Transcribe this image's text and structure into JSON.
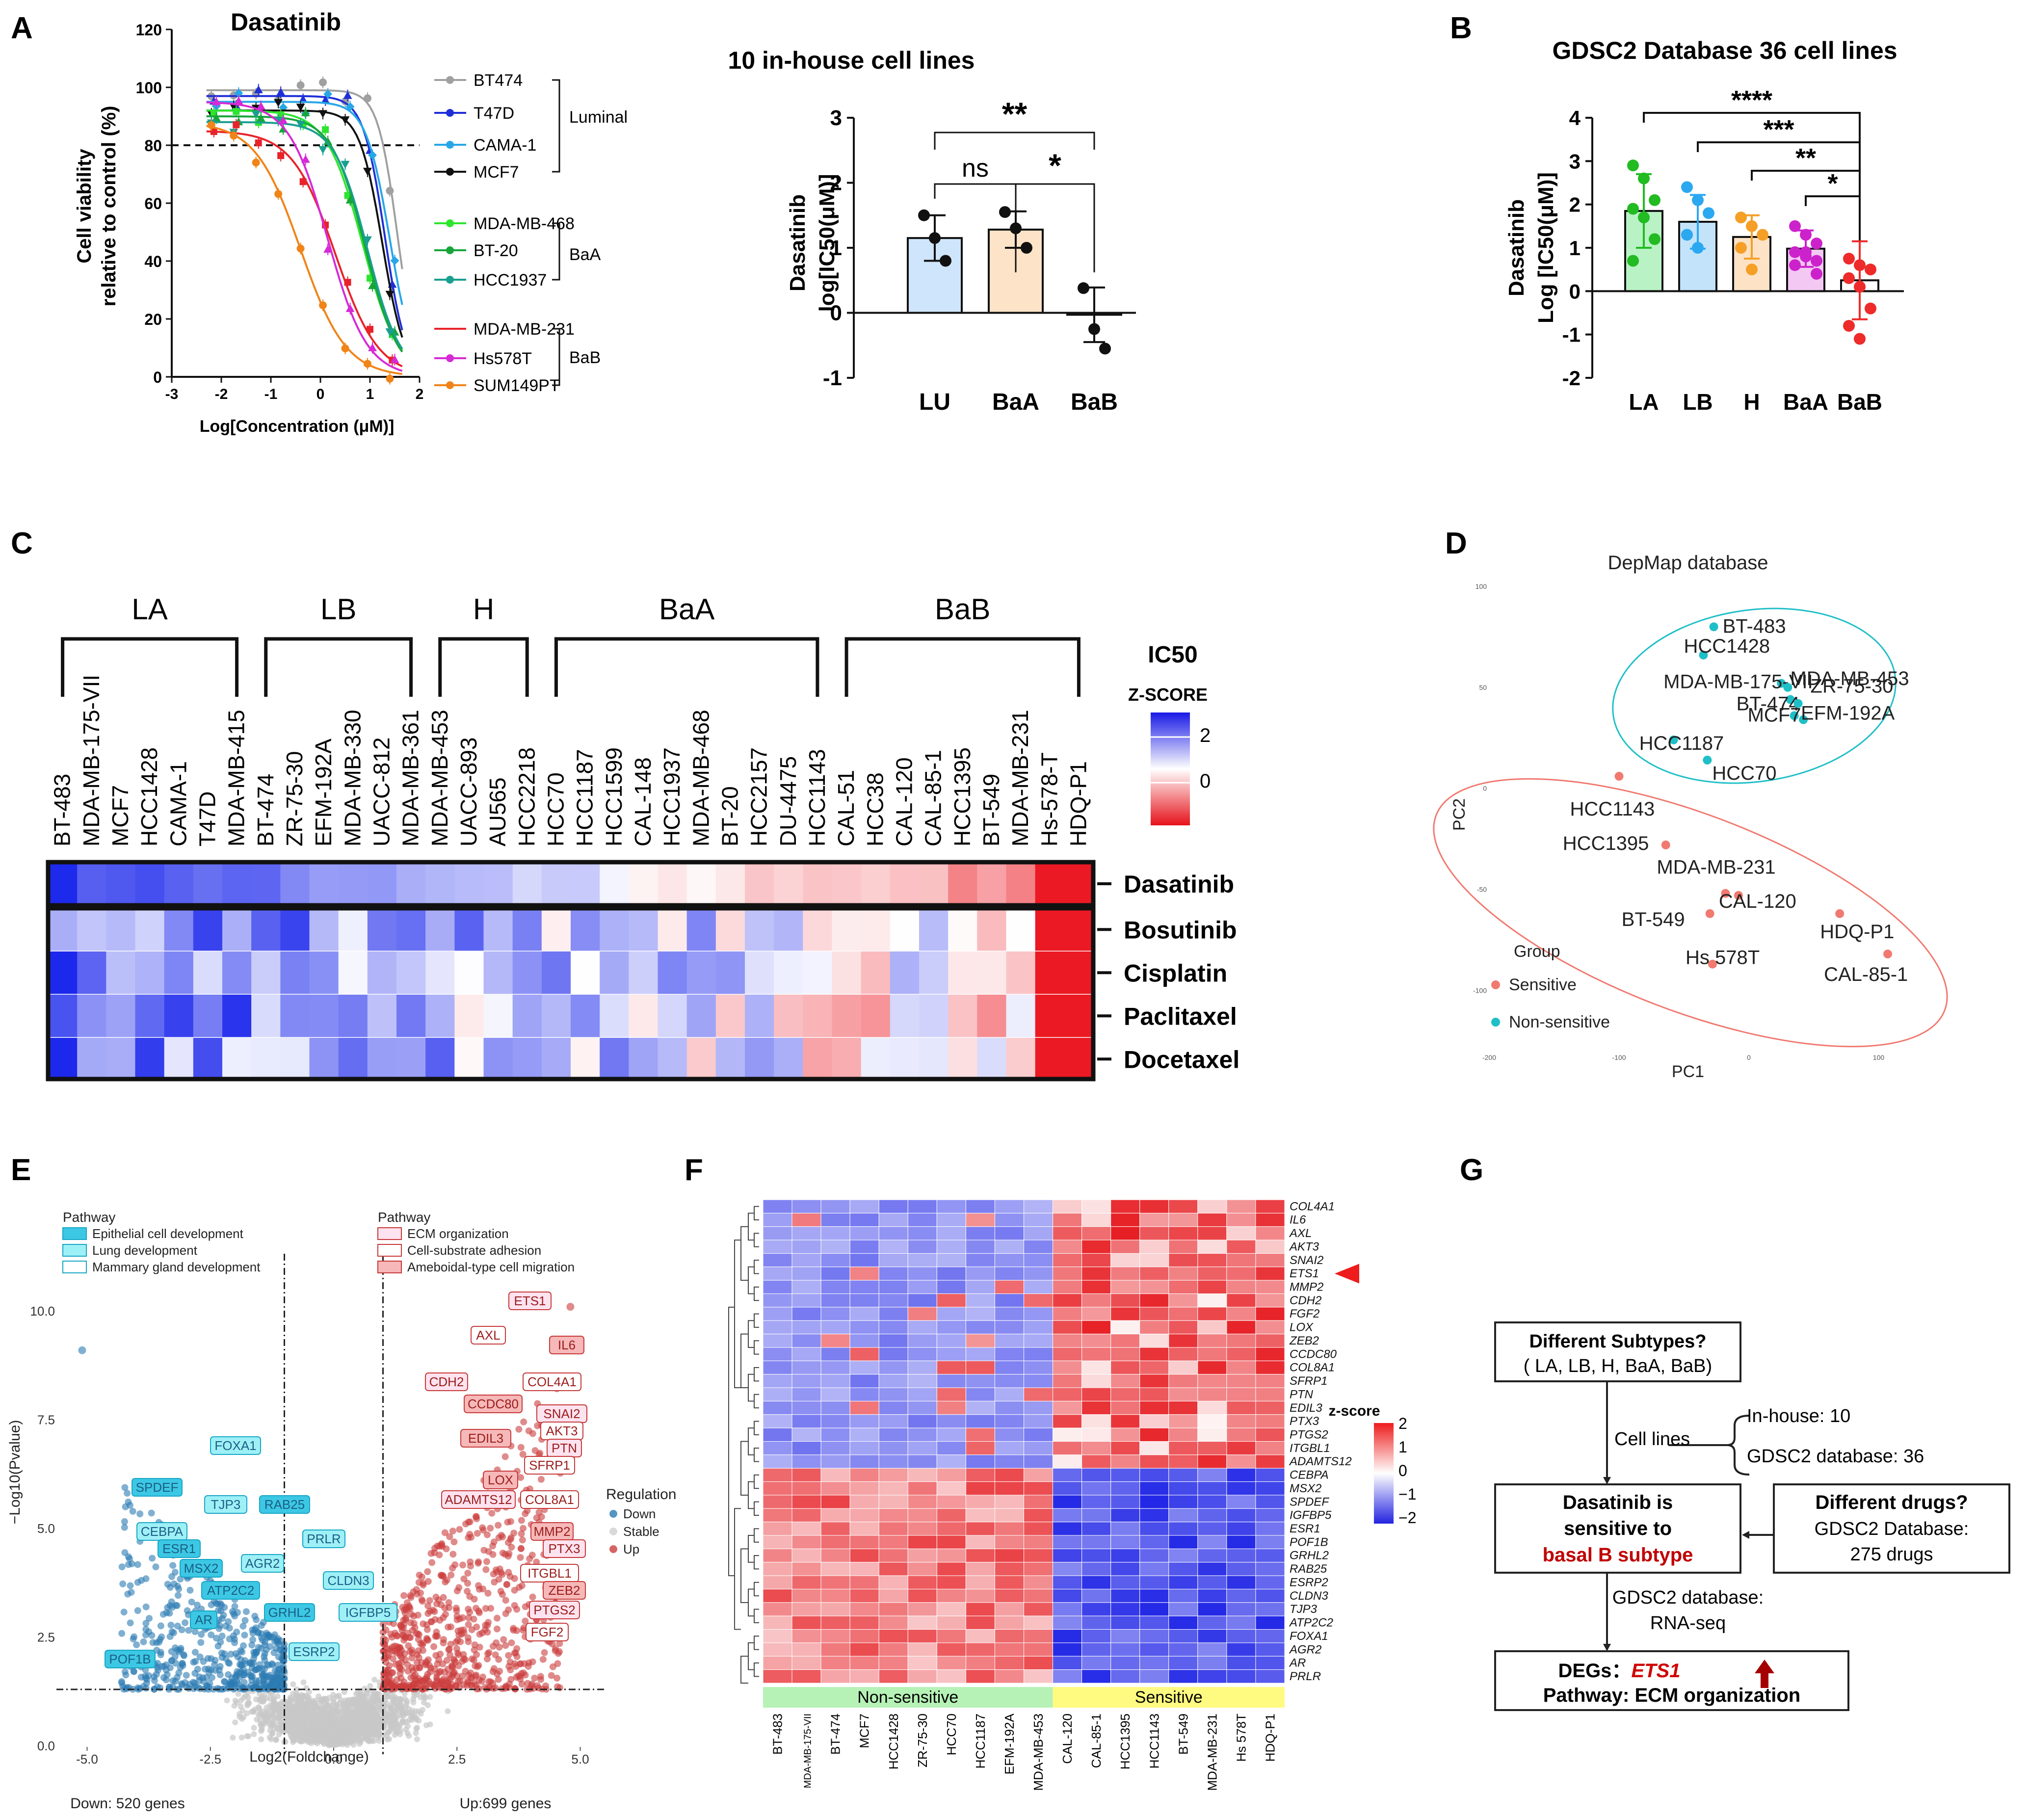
{
  "colors": {
    "luminal": "#6f6f6f",
    "baa": "#1a9d3a",
    "bab": "#ff7f0e",
    "red": "#e0242b",
    "blue": "#1f77b4",
    "teal": "#22b8c6"
  },
  "panels": {
    "A": {
      "letter": "A",
      "left": {
        "title": "Dasatinib",
        "ylabel_1": "Cell viability",
        "ylabel_2": "relative to control (%)",
        "xlabel": "Log[Concentration (μM)]",
        "yticks": [
          "0",
          "20",
          "40",
          "60",
          "80",
          "100",
          "120"
        ],
        "xticks": [
          "-3",
          "-2",
          "-1",
          "0",
          "1",
          "2"
        ],
        "legend": [
          {
            "name": "BT474",
            "color": "#a0a0a0",
            "marker": "circle"
          },
          {
            "name": "T47D",
            "color": "#1f2fd8",
            "marker": "triangle"
          },
          {
            "name": "CAMA-1",
            "color": "#27a6e8",
            "marker": "diamond"
          },
          {
            "name": "MCF7",
            "color": "#111111",
            "marker": "tri-down"
          },
          {
            "name": "MDA-MB-468",
            "color": "#2ee52e",
            "marker": "square"
          },
          {
            "name": "BT-20",
            "color": "#17a53a",
            "marker": "triangle"
          },
          {
            "name": "HCC1937",
            "color": "#199f8f",
            "marker": "tri-down"
          },
          {
            "name": "MDA-MB-231",
            "color": "#e8232a",
            "marker": "line"
          },
          {
            "name": "Hs578T",
            "color": "#d62ad6",
            "marker": "triangle"
          },
          {
            "name": "SUM149PT",
            "color": "#f08418",
            "marker": "circle"
          }
        ],
        "groups": [
          "Luminal",
          "BaA",
          "BaB"
        ]
      },
      "right": {
        "title": "10 in-house cell lines",
        "ylabel_1": "Dasatinib",
        "ylabel_2": "log[IC50(μM)]",
        "categories": [
          "LU",
          "BaA",
          "BaB"
        ],
        "values": [
          1.15,
          1.28,
          -0.03
        ],
        "sd": [
          0.35,
          0.28,
          0.42
        ],
        "points": [
          [
            1.5,
            1.15,
            0.8
          ],
          [
            1.55,
            1.3,
            1.0
          ],
          [
            0.38,
            -0.25,
            -0.55
          ]
        ],
        "yticks": [
          "-1",
          "0",
          "1",
          "2",
          "3"
        ],
        "ylim": [
          -1,
          3
        ],
        "sig": [
          "**",
          "ns",
          "*"
        ]
      }
    },
    "B": {
      "letter": "B",
      "title": "GDSC2 Database 36 cell lines",
      "ylabel_1": "Dasatinib",
      "ylabel_2": "Log [IC50(μM)]",
      "categories": [
        "LA",
        "LB",
        "H",
        "BaA",
        "BaB"
      ],
      "values": [
        1.85,
        1.6,
        1.25,
        0.98,
        0.25
      ],
      "sd": [
        0.85,
        0.62,
        0.5,
        0.42,
        0.9
      ],
      "yticks": [
        "-2",
        "-1",
        "0",
        "1",
        "2",
        "3",
        "4"
      ],
      "ylim": [
        -2,
        4
      ],
      "sig": [
        "****",
        "***",
        "**",
        "*"
      ]
    },
    "C": {
      "letter": "C",
      "groups": [
        "LA",
        "LB",
        "H",
        "BaA",
        "BaB"
      ],
      "cell_lines": [
        "BT-483",
        "MDA-MB-175-VII",
        "MCF7",
        "HCC1428",
        "CAMA-1",
        "T47D",
        "MDA-MB-415",
        "BT-474",
        "ZR-75-30",
        "EFM-192A",
        "MDA-MB-330",
        "UACC-812",
        "MDA-MB-361",
        "MDA-MB-453",
        "UACC-893",
        "AU565",
        "HCC2218",
        "HCC70",
        "HCC1187",
        "HCC1599",
        "CAL-148",
        "HCC1937",
        "MDA-MB-468",
        "BT-20",
        "HCC2157",
        "DU-4475",
        "HCC1143",
        "CAL-51",
        "HCC38",
        "CAL-120",
        "CAL-85-1",
        "HCC1395",
        "BT-549",
        "MDA-MB-231",
        "Hs-578-T",
        "HDQ-P1"
      ],
      "drugs": [
        "Dasatinib",
        "Bosutinib",
        "Cisplatin",
        "Paclitaxel",
        "Docetaxel"
      ],
      "legend_title": "IC50",
      "legend_sub": "Z-SCORE",
      "legend_ticks": [
        "2",
        "0"
      ]
    },
    "D": {
      "letter": "D",
      "title": "DepMap database",
      "xlabel": "PC1",
      "ylabel": "PC2",
      "xticks": [
        "-200",
        "-100",
        "0",
        "100"
      ],
      "yticks": [
        "100",
        "50",
        "0",
        "-50",
        "-100"
      ],
      "legend_title": "Group",
      "legend": [
        "Sensitive",
        "Non-sensitive"
      ],
      "points_nonsensitive": [
        {
          "label": "BT-483",
          "x": -27,
          "y": 80
        },
        {
          "label": "HCC1428",
          "x": -35,
          "y": 66
        },
        {
          "label": "MDA-MB-175-VII",
          "x": 25,
          "y": 52
        },
        {
          "label": "MDA-MB-453",
          "x": 30,
          "y": 50
        },
        {
          "label": "BT-474",
          "x": 32,
          "y": 44
        },
        {
          "label": "ZR-75-30",
          "x": 38,
          "y": 42
        },
        {
          "label": "MCF7",
          "x": 35,
          "y": 36
        },
        {
          "label": "EFM-192A",
          "x": 42,
          "y": 34
        },
        {
          "label": "HCC1187",
          "x": -58,
          "y": 24
        },
        {
          "label": "HCC70",
          "x": -32,
          "y": 14
        }
      ],
      "points_sensitive": [
        {
          "label": "HCC1143",
          "x": -100,
          "y": 6
        },
        {
          "label": "HCC1395",
          "x": -64,
          "y": -28
        },
        {
          "label": "MDA-MB-231",
          "x": -18,
          "y": -52
        },
        {
          "label": "BT-549",
          "x": -30,
          "y": -62
        },
        {
          "label": "CAL-120",
          "x": -8,
          "y": -53
        },
        {
          "label": "HDQ-P1",
          "x": 70,
          "y": -62
        },
        {
          "label": "Hs 578T",
          "x": -28,
          "y": -87
        },
        {
          "label": "CAL-85-1",
          "x": 107,
          "y": -82
        }
      ]
    },
    "E": {
      "letter": "E",
      "xlabel": "Log2(Foldchange)",
      "ylabel": "−Log10(Pvalue)",
      "xticks": [
        "-5.0",
        "-2.5",
        "0.0",
        "2.5",
        "5.0"
      ],
      "yticks": [
        "0.0",
        "2.5",
        "5.0",
        "7.5",
        "10.0"
      ],
      "down_text": "Down: 520 genes",
      "up_text": "Up:699 genes",
      "pathway_left_title": "Pathway",
      "pathway_left": [
        "Epithelial cell development",
        "Lung development",
        "Mammary gland development"
      ],
      "pathway_right_title": "Pathway",
      "pathway_right": [
        "ECM organization",
        "Cell-substrate adhesion",
        "Ameboidal-type cell migration"
      ],
      "regulation_title": "Regulation",
      "regulation": [
        "Down",
        "Stable",
        "Up"
      ],
      "down_genes": [
        "FOXA1",
        "SPDEF",
        "TJP3",
        "RAB25",
        "CEBPA",
        "ESR1",
        "PRLR",
        "MSX2",
        "AGR2",
        "ATP2C2",
        "CLDN3",
        "GRHL2",
        "IGFBP5",
        "AR",
        "ESRP2",
        "POF1B"
      ],
      "up_genes": [
        "ETS1",
        "AXL",
        "IL6",
        "CDH2",
        "COL4A1",
        "CCDC80",
        "SNAI2",
        "AKT3",
        "EDIL3",
        "PTN",
        "SFRP1",
        "LOX",
        "ADAMTS12",
        "COL8A1",
        "MMP2",
        "PTX3",
        "ITGBL1",
        "ZEB2",
        "PTGS2",
        "FGF2"
      ]
    },
    "F": {
      "letter": "F",
      "genes": [
        "COL4A1",
        "IL6",
        "AXL",
        "AKT3",
        "SNAI2",
        "ETS1",
        "MMP2",
        "CDH2",
        "FGF2",
        "LOX",
        "ZEB2",
        "CCDC80",
        "COL8A1",
        "SFRP1",
        "PTN",
        "EDIL3",
        "PTX3",
        "PTGS2",
        "ITGBL1",
        "ADAMTS12",
        "CEBPA",
        "MSX2",
        "SPDEF",
        "IGFBP5",
        "ESR1",
        "POF1B",
        "GRHL2",
        "RAB25",
        "ESRP2",
        "CLDN3",
        "TJP3",
        "ATP2C2",
        "FOXA1",
        "AGR2",
        "AR",
        "PRLR"
      ],
      "samples": [
        "BT-483",
        "MDA-MB-175-VII",
        "BT-474",
        "MCF7",
        "HCC1428",
        "ZR-75-30",
        "HCC70",
        "HCC1187",
        "EFM-192A",
        "MDA-MB-453",
        "CAL-120",
        "CAL-85-1",
        "HCC1395",
        "HCC1143",
        "BT-549",
        "MDA-MB-231",
        "Hs 578T",
        "HDQ-P1"
      ],
      "group_left": "Non-sensitive",
      "group_right": "Sensitive",
      "legend_title": "z-score",
      "legend_ticks": [
        "2",
        "1",
        "0",
        "−1",
        "−2"
      ]
    },
    "G": {
      "letter": "G",
      "box1_l1": "Different Subtypes?",
      "box1_l2": "( LA, LB, H, BaA, BaB)",
      "cell_lines_label": "Cell lines",
      "inhouse": "In-house: 10",
      "gdsc": "GDSC2 database: 36",
      "box2_l1": "Dasatinib is",
      "box2_l2": "sensitive to",
      "box2_l3": "basal B subtype",
      "box3_l1": "Different drugs?",
      "box3_l2": "GDSC2 Database:",
      "box3_l3": "275 drugs",
      "mid_l1": "GDSC2 database:",
      "mid_l2": "RNA-seq",
      "box4_l1_a": "DEGs：",
      "box4_l1_b": "ETS1",
      "box4_l2": "Pathway: ECM organization"
    }
  }
}
